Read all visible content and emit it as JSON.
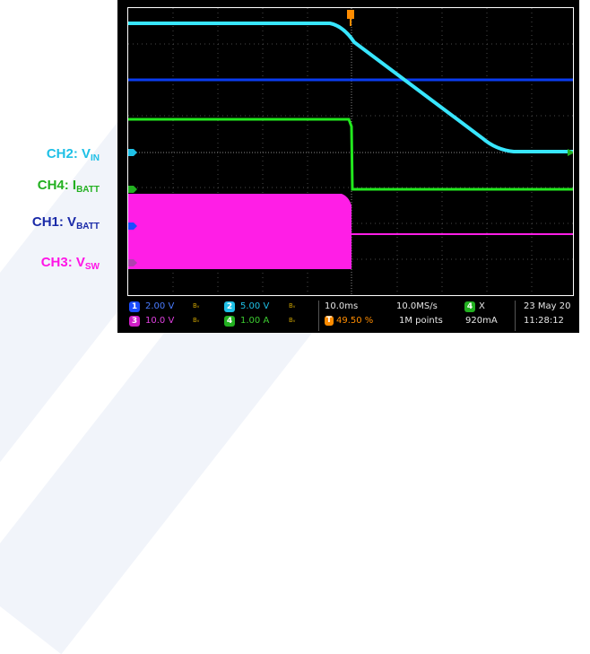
{
  "channel_labels": {
    "ch2": {
      "prefix": "CH2: V",
      "sub": "IN",
      "color": "#1ec0e6"
    },
    "ch4": {
      "prefix": "CH4: I",
      "sub": "BATT",
      "color": "#22b020"
    },
    "ch1": {
      "prefix": "CH1: V",
      "sub": "BATT",
      "color": "#1a2aa8"
    },
    "ch3": {
      "prefix": "CH3: V",
      "sub": "SW",
      "color": "#ff14e6"
    }
  },
  "trace_colors": {
    "ch1": "#0a3cf0",
    "ch2": "#38e6ff",
    "ch3": "#ff1ee6",
    "ch4": "#22e81e",
    "trigger": "#ff8c00"
  },
  "status_bar": {
    "ch1": {
      "num": "1",
      "scale": "2.00 V",
      "color": "#1a4cff"
    },
    "ch2": {
      "num": "2",
      "scale": "5.00 V",
      "color": "#1ec0e6"
    },
    "ch3": {
      "num": "3",
      "scale": "10.0 V",
      "color": "#d01ec8"
    },
    "ch4": {
      "num": "4",
      "scale": "1.00 A",
      "color": "#22b020"
    },
    "bw_symbol": "Bᵥ",
    "timebase": "10.0ms",
    "trigger_pos": "49.50 %",
    "trigger_badge": "T",
    "sample_rate": "10.0MS/s",
    "record_length": "1M points",
    "trigger_source_num": "4",
    "trigger_coupling": "X",
    "trigger_level": "920mA",
    "date": "23 May 20",
    "time": "11:28:12"
  }
}
